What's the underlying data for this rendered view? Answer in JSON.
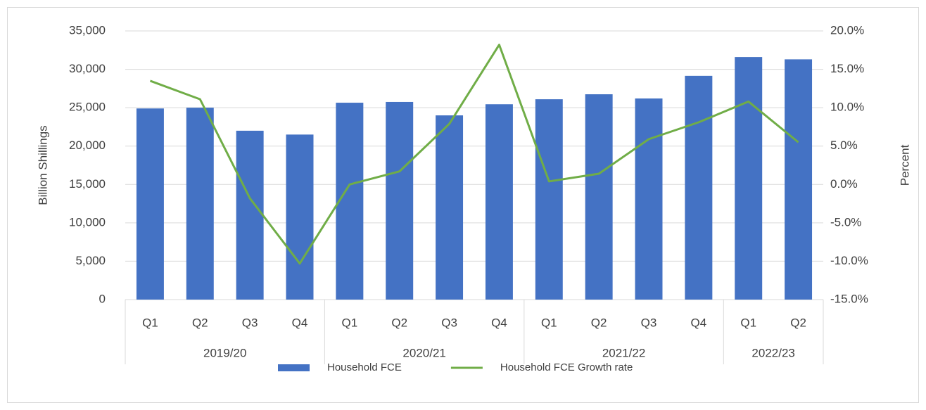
{
  "chart_data": {
    "type": "bar_line",
    "groups": [
      {
        "label": "2019/20",
        "categories": [
          "Q1",
          "Q2",
          "Q3",
          "Q4"
        ]
      },
      {
        "label": "2020/21",
        "categories": [
          "Q1",
          "Q2",
          "Q3",
          "Q4"
        ]
      },
      {
        "label": "2021/22",
        "categories": [
          "Q1",
          "Q2",
          "Q3",
          "Q4"
        ]
      },
      {
        "label": "2022/23",
        "categories": [
          "Q1",
          "Q2"
        ]
      }
    ],
    "series": [
      {
        "name": "Household FCE",
        "type": "bar",
        "color": "#4472c4",
        "values": [
          24900,
          25000,
          22000,
          21500,
          25650,
          25750,
          24000,
          25450,
          26100,
          26750,
          26200,
          29150,
          31600,
          31300
        ]
      },
      {
        "name": "Household FCE Growth rate",
        "type": "line",
        "axis": "y2",
        "color": "#70ad47",
        "values": [
          13.5,
          11.1,
          -1.8,
          -10.3,
          0.0,
          1.7,
          7.9,
          18.2,
          0.4,
          1.4,
          5.9,
          8.1,
          10.8,
          5.5
        ]
      }
    ],
    "ylabel": "Billion Shillings",
    "y2label": "Percent",
    "ylim": [
      0,
      35000
    ],
    "yticks": [
      0,
      {
        "value": 5000,
        "label": "5,000"
      },
      {
        "value": 10000,
        "label": "10,000"
      },
      {
        "value": 15000,
        "label": "15,000"
      },
      {
        "value": 20000,
        "label": "20,000"
      },
      {
        "value": 25000,
        "label": "25,000"
      },
      {
        "value": 30000,
        "label": "30,000"
      },
      {
        "value": 35000,
        "label": "35,000"
      }
    ],
    "y2lim": [
      -15,
      20
    ],
    "y2ticks": [
      {
        "value": -15,
        "label": "-15.0%"
      },
      {
        "value": -10,
        "label": "-10.0%"
      },
      {
        "value": -5,
        "label": "-5.0%"
      },
      {
        "value": 0,
        "label": "0.0%"
      },
      {
        "value": 5,
        "label": "5.0%"
      },
      {
        "value": 10,
        "label": "10.0%"
      },
      {
        "value": 15,
        "label": "15.0%"
      },
      {
        "value": 20,
        "label": "20.0%"
      }
    ],
    "grid": true,
    "legend": "bottom"
  }
}
